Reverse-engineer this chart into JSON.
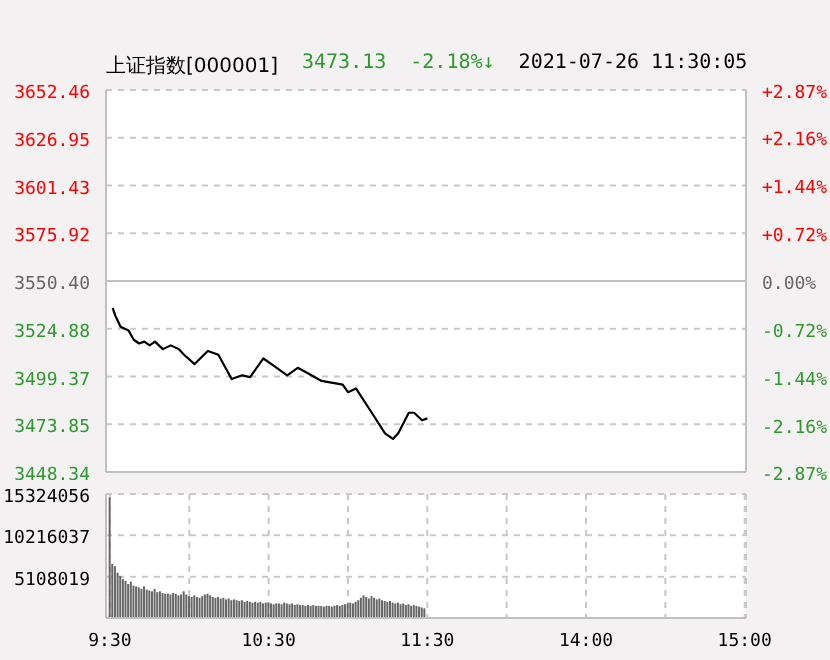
{
  "chart_data": [
    {
      "type": "line",
      "title": "上证指数[000001]",
      "subtitle": "2021-07-26 11:30:05",
      "annotations": [
        "3473.13",
        "-2.18%↓"
      ],
      "series": [
        {
          "color": "#000000",
          "values": [
            null,
            3536,
            3532,
            null,
            3526,
            null,
            null,
            3524,
            null,
            3519,
            null,
            3517,
            null,
            3518,
            null,
            3516,
            null,
            3518,
            null,
            null,
            3514,
            null,
            null,
            3516,
            null,
            null,
            3514,
            null,
            3511,
            null,
            null,
            null,
            3506,
            null,
            null,
            null,
            null,
            3513,
            null,
            null,
            null,
            3511,
            null,
            null,
            null,
            null,
            3498,
            null,
            null,
            null,
            3500,
            null,
            null,
            3499,
            null,
            null,
            null,
            null,
            3509,
            null,
            null,
            null,
            3505,
            null,
            null,
            null,
            null,
            3500,
            null,
            null,
            null,
            3504,
            null,
            null,
            null,
            3501,
            null,
            null,
            null,
            null,
            3497,
            null,
            null,
            null,
            null,
            null,
            null,
            null,
            3495,
            null,
            3491,
            null,
            null,
            3493,
            null,
            null,
            null,
            null,
            null,
            3480,
            null,
            null,
            null,
            null,
            3469,
            null,
            null,
            3466,
            null,
            3469,
            null,
            null,
            null,
            3480,
            null,
            3480,
            null,
            null,
            3476,
            null,
            3477,
            null,
            null,
            null,
            null,
            null,
            null,
            null,
            null,
            null,
            null,
            null,
            null,
            null,
            null,
            null,
            null,
            null,
            null,
            null,
            null,
            null,
            null,
            null,
            null,
            null,
            null,
            null,
            null,
            null,
            null,
            null,
            null,
            null,
            null,
            null,
            null,
            null,
            null,
            null,
            null,
            null,
            null,
            null,
            null,
            null,
            null,
            null,
            null,
            null,
            null,
            null,
            null,
            null,
            null,
            null,
            null,
            null,
            null,
            null,
            null,
            null,
            null,
            null,
            null,
            null,
            null,
            null,
            null,
            null,
            null,
            null,
            null,
            null,
            null,
            null,
            null,
            null,
            null,
            null,
            null,
            null,
            null,
            null,
            null,
            null,
            null,
            null,
            null,
            null,
            null,
            null,
            null,
            null,
            null,
            null,
            null,
            null,
            null,
            null,
            null,
            null,
            null,
            null,
            null,
            null,
            null,
            null,
            null,
            null,
            null,
            null,
            null,
            null,
            null,
            null,
            null,
            null,
            null,
            null,
            null
          ]
        }
      ],
      "ylim": [
        3448.34,
        3652.46
      ],
      "yticks": [
        3448.34,
        3473.85,
        3499.37,
        3524.88,
        {
          "value": 3550.4,
          "label": "3550.40"
        },
        3575.92,
        3601.43,
        3626.95,
        3652.46
      ],
      "y2lim": [
        -2.87,
        2.87
      ],
      "y2ticks": [
        {
          "value": -2.87,
          "label": "-2.87%"
        },
        {
          "value": -2.16,
          "label": "-2.16%"
        },
        {
          "value": -1.44,
          "label": "-1.44%"
        },
        {
          "value": -0.72,
          "label": "-0.72%"
        },
        {
          "value": 0,
          "label": "0.00%"
        },
        {
          "value": 0.72,
          "label": "+0.72%"
        },
        {
          "value": 1.44,
          "label": "+1.44%"
        },
        {
          "value": 2.16,
          "label": "+2.16%"
        },
        {
          "value": 2.87,
          "label": "+2.87%"
        }
      ],
      "ref_lines": [
        {
          "axis": "y",
          "value": 3550.4,
          "color": "#c0c0c0",
          "line_style": "solid"
        }
      ],
      "grid": true,
      "tick_labels": "y",
      "marker": "none",
      "line_style": "solid"
    },
    {
      "type": "bar",
      "categories": [
        "9:30",
        null,
        null,
        null,
        null,
        null,
        null,
        null,
        null,
        null,
        null,
        null,
        null,
        null,
        null,
        null,
        null,
        null,
        null,
        null,
        null,
        null,
        null,
        null,
        null,
        null,
        null,
        null,
        null,
        null,
        null,
        null,
        null,
        null,
        null,
        null,
        null,
        null,
        null,
        null,
        null,
        null,
        null,
        null,
        null,
        null,
        null,
        null,
        null,
        null,
        null,
        null,
        null,
        null,
        null,
        null,
        null,
        null,
        null,
        null,
        "10:30",
        null,
        null,
        null,
        null,
        null,
        null,
        null,
        null,
        null,
        null,
        null,
        null,
        null,
        null,
        null,
        null,
        null,
        null,
        null,
        null,
        null,
        null,
        null,
        null,
        null,
        null,
        null,
        null,
        null,
        null,
        null,
        null,
        null,
        null,
        null,
        null,
        null,
        null,
        null,
        null,
        null,
        null,
        null,
        null,
        null,
        null,
        null,
        null,
        null,
        null,
        null,
        null,
        null,
        null,
        null,
        null,
        null,
        null,
        null,
        "11:30",
        null,
        null,
        null,
        null,
        null,
        null,
        null,
        null,
        null,
        null,
        null,
        null,
        null,
        null,
        null,
        null,
        null,
        null,
        null,
        null,
        null,
        null,
        null,
        null,
        null,
        null,
        null,
        null,
        null,
        null,
        null,
        null,
        null,
        null,
        null,
        null,
        null,
        null,
        null,
        null,
        null,
        null,
        null,
        null,
        null,
        null,
        null,
        null,
        null,
        null,
        null,
        null,
        null,
        null,
        null,
        null,
        null,
        null,
        null,
        "14:00",
        null,
        null,
        null,
        null,
        null,
        null,
        null,
        null,
        null,
        null,
        null,
        null,
        null,
        null,
        null,
        null,
        null,
        null,
        null,
        null,
        null,
        null,
        null,
        null,
        null,
        null,
        null,
        null,
        null,
        null,
        null,
        null,
        null,
        null,
        null,
        null,
        null,
        null,
        null,
        null,
        null,
        null,
        null,
        null,
        null,
        null,
        null,
        null,
        null,
        null,
        null,
        null,
        null,
        null,
        null,
        null,
        null,
        null,
        null,
        "15:00"
      ],
      "series": [
        {
          "color": "#666666",
          "values": [
            14900000,
            6700000,
            6400000,
            5600000,
            5200000,
            4800000,
            4600000,
            4200000,
            4500000,
            4000000,
            3900000,
            3800000,
            3600000,
            3900000,
            3500000,
            3400000,
            3300000,
            3600000,
            3200000,
            3300000,
            3100000,
            3000000,
            3000000,
            2900000,
            3100000,
            3000000,
            2800000,
            2900000,
            3300000,
            2900000,
            2700000,
            2600000,
            2800000,
            2600000,
            2500000,
            2700000,
            2900000,
            3000000,
            2800000,
            2600000,
            2500000,
            2600000,
            2400000,
            2500000,
            2300000,
            2400000,
            2200000,
            2300000,
            2200000,
            2100000,
            2200000,
            2000000,
            2100000,
            2000000,
            1900000,
            2000000,
            1900000,
            2000000,
            1800000,
            1900000,
            1900000,
            1800000,
            1700000,
            1800000,
            1800000,
            1700000,
            1900000,
            1800000,
            1700000,
            1800000,
            1600000,
            1700000,
            1600000,
            1600000,
            1500000,
            1600000,
            1500000,
            1600000,
            1500000,
            1500000,
            1500000,
            1400000,
            1500000,
            1500000,
            1400000,
            1500000,
            1600000,
            1500000,
            1600000,
            1700000,
            1800000,
            1900000,
            1800000,
            2000000,
            2200000,
            2500000,
            2800000,
            2600000,
            2400000,
            2700000,
            2500000,
            2300000,
            2400000,
            2200000,
            2100000,
            2000000,
            2100000,
            1900000,
            1800000,
            1900000,
            1700000,
            1800000,
            1600000,
            1700000,
            1500000,
            1600000,
            1500000,
            1400000,
            1300000,
            1200000,
            null,
            null,
            null,
            null,
            null,
            null,
            null,
            null,
            null,
            null,
            null,
            null,
            null,
            null,
            null,
            null,
            null,
            null,
            null,
            null,
            null,
            null,
            null,
            null,
            null,
            null,
            null,
            null,
            null,
            null,
            null,
            null,
            null,
            null,
            null,
            null,
            null,
            null,
            null,
            null,
            null,
            null,
            null,
            null,
            null,
            null,
            null,
            null,
            null,
            null,
            null,
            null,
            null,
            null,
            null,
            null,
            null,
            null,
            null,
            null,
            null,
            null,
            null,
            null,
            null,
            null,
            null,
            null,
            null,
            null,
            null,
            null,
            null,
            null,
            null,
            null,
            null,
            null,
            null,
            null,
            null,
            null,
            null,
            null,
            null,
            null,
            null,
            null,
            null,
            null,
            null,
            null,
            null,
            null,
            null,
            null,
            null,
            null,
            null,
            null,
            null,
            null,
            null,
            null,
            null,
            null,
            null,
            null,
            null,
            null,
            null,
            null,
            null,
            null,
            null,
            null,
            null,
            null,
            null,
            null,
            null
          ]
        }
      ],
      "ylim": [
        0,
        15324056
      ],
      "yticks": [
        {
          "value": 0,
          "label": null
        },
        5108019,
        10216037,
        15324056
      ],
      "grid": true
    }
  ]
}
